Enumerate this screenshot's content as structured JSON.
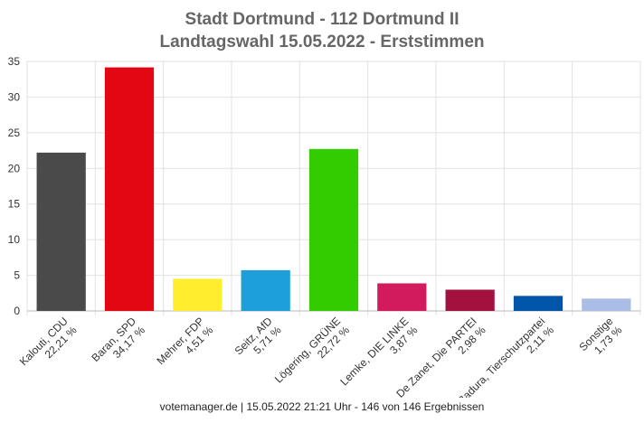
{
  "title_line1": "Stadt Dortmund - 112 Dortmund II",
  "title_line2": "Landtagswahl 15.05.2022  - Erststimmen",
  "footer": "votemanager.de | 15.05.2022 21:21 Uhr - 146 von 146 Ergebnissen",
  "chart_data": {
    "type": "bar",
    "title": "Stadt Dortmund - 112 Dortmund II",
    "subtitle": "Landtagswahl 15.05.2022  - Erststimmen",
    "xlabel": "",
    "ylabel": "",
    "ylim": [
      0,
      35
    ],
    "yticks": [
      0,
      5,
      10,
      15,
      20,
      25,
      30,
      35
    ],
    "grid": true,
    "categories": [
      "Kalouti, CDU",
      "Baran, SPD",
      "Mehrer, FDP",
      "Seitz, AfD",
      "Lögering, GRÜNE",
      "Lemke, DIE LINKE",
      "De Zanet, Die PARTEI",
      "Badura, Tierschutzpartei",
      "Sonstige"
    ],
    "value_labels": [
      "22,21 %",
      "34,17 %",
      "4,51 %",
      "5,71 %",
      "22,72 %",
      "3,87 %",
      "2,98 %",
      "2,11 %",
      "1,73 %"
    ],
    "values": [
      22.21,
      34.17,
      4.51,
      5.71,
      22.72,
      3.87,
      2.98,
      2.11,
      1.73
    ],
    "colors": [
      "#4a4a4a",
      "#e30613",
      "#ffed2e",
      "#1d9fdc",
      "#33cc00",
      "#d21b5c",
      "#a3123f",
      "#0055a8",
      "#a9bde6"
    ]
  }
}
